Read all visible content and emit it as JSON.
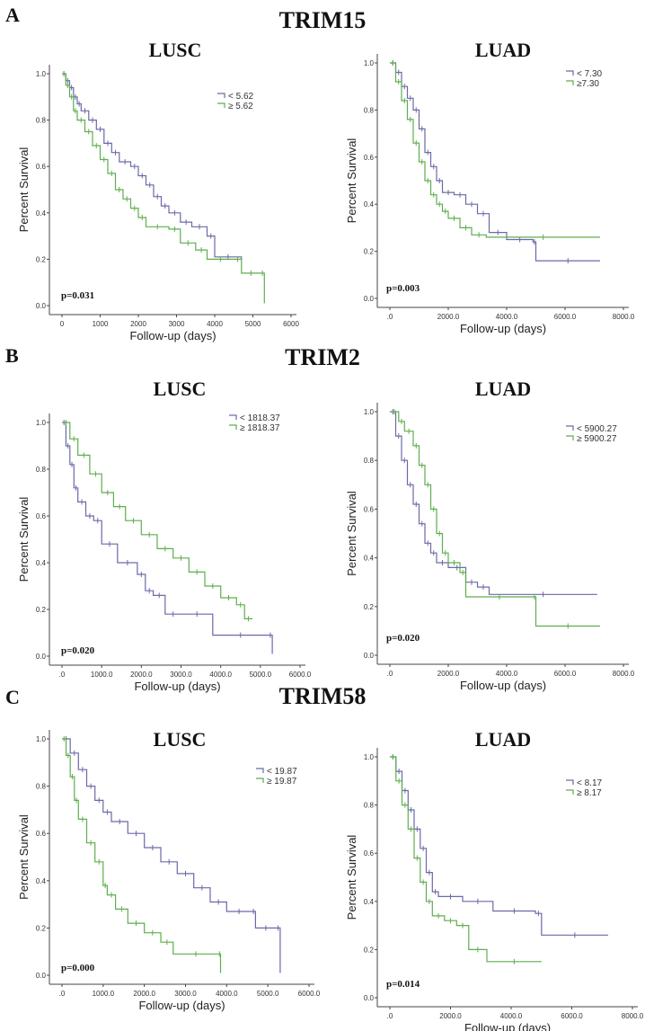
{
  "rows": [
    {
      "letter": "A",
      "gene": "TRIM15"
    },
    {
      "letter": "B",
      "gene": "TRIM2"
    },
    {
      "letter": "C",
      "gene": "TRIM58"
    }
  ],
  "colors": {
    "high": "#6a6aa8",
    "low": "#5fae4e",
    "axis": "#444444"
  },
  "chart_data": [
    {
      "type": "line",
      "panel": "A",
      "gene": "TRIM15",
      "title": "LUSC",
      "xlabel": "Follow-up (days)",
      "ylabel": "Percent Survival",
      "xlim": [
        0,
        6000
      ],
      "ylim": [
        0,
        1
      ],
      "xticks": [
        0,
        1000,
        2000,
        3000,
        4000,
        5000,
        6000
      ],
      "xticklabels": [
        "0",
        "1000",
        "2000",
        "3000",
        "4000",
        "5000",
        "6000"
      ],
      "yticks": [
        0,
        0.2,
        0.4,
        0.6,
        0.8,
        1.0
      ],
      "yticklabels": [
        "0.0",
        "0.2",
        "0.4",
        "0.6",
        "0.8",
        "1.0"
      ],
      "pvalue": "p=0.031",
      "series": [
        {
          "name": "< 5.62",
          "color_key": "high",
          "points": [
            [
              0,
              1
            ],
            [
              100,
              0.97
            ],
            [
              200,
              0.94
            ],
            [
              300,
              0.9
            ],
            [
              400,
              0.87
            ],
            [
              500,
              0.84
            ],
            [
              700,
              0.8
            ],
            [
              900,
              0.76
            ],
            [
              1100,
              0.7
            ],
            [
              1300,
              0.66
            ],
            [
              1500,
              0.62
            ],
            [
              1800,
              0.6
            ],
            [
              2000,
              0.56
            ],
            [
              2200,
              0.52
            ],
            [
              2400,
              0.47
            ],
            [
              2600,
              0.43
            ],
            [
              2800,
              0.4
            ],
            [
              3100,
              0.36
            ],
            [
              3400,
              0.34
            ],
            [
              3800,
              0.3
            ],
            [
              4000,
              0.21
            ],
            [
              4700,
              0.2
            ]
          ]
        },
        {
          "name": "≥ 5.62",
          "color_key": "low",
          "points": [
            [
              0,
              1
            ],
            [
              100,
              0.95
            ],
            [
              200,
              0.9
            ],
            [
              300,
              0.84
            ],
            [
              400,
              0.8
            ],
            [
              600,
              0.75
            ],
            [
              800,
              0.69
            ],
            [
              1000,
              0.63
            ],
            [
              1200,
              0.57
            ],
            [
              1400,
              0.5
            ],
            [
              1600,
              0.46
            ],
            [
              1800,
              0.42
            ],
            [
              2000,
              0.38
            ],
            [
              2200,
              0.34
            ],
            [
              2800,
              0.33
            ],
            [
              3100,
              0.27
            ],
            [
              3500,
              0.24
            ],
            [
              3800,
              0.2
            ],
            [
              4500,
              0.2
            ],
            [
              4700,
              0.14
            ],
            [
              5200,
              0.14
            ],
            [
              5300,
              0.01
            ]
          ]
        }
      ]
    },
    {
      "type": "line",
      "panel": "A",
      "gene": "TRIM15",
      "title": "LUAD",
      "xlabel": "Follow-up (days)",
      "ylabel": "Percent Survival",
      "xlim": [
        0,
        8000
      ],
      "ylim": [
        0,
        1
      ],
      "xticks": [
        0,
        2000,
        4000,
        6000,
        8000
      ],
      "xticklabels": [
        ".0",
        "2000.0",
        "4000.0",
        "6000.0",
        "8000.0"
      ],
      "yticks": [
        0,
        0.2,
        0.4,
        0.6,
        0.8,
        1.0
      ],
      "yticklabels": [
        "0.0",
        "0.2",
        "0.4",
        "0.6",
        "0.8",
        "1.0"
      ],
      "pvalue": "p=0.003",
      "series": [
        {
          "name": "< 7.30",
          "color_key": "high",
          "points": [
            [
              0,
              1
            ],
            [
              200,
              0.96
            ],
            [
              400,
              0.9
            ],
            [
              600,
              0.85
            ],
            [
              800,
              0.8
            ],
            [
              1000,
              0.72
            ],
            [
              1200,
              0.62
            ],
            [
              1400,
              0.56
            ],
            [
              1600,
              0.5
            ],
            [
              1800,
              0.45
            ],
            [
              2200,
              0.44
            ],
            [
              2600,
              0.4
            ],
            [
              3000,
              0.36
            ],
            [
              3400,
              0.28
            ],
            [
              4000,
              0.25
            ],
            [
              4900,
              0.24
            ],
            [
              5000,
              0.16
            ],
            [
              7200,
              0.16
            ]
          ]
        },
        {
          "name": "≥7.30",
          "color_key": "low",
          "points": [
            [
              0,
              1
            ],
            [
              200,
              0.92
            ],
            [
              400,
              0.84
            ],
            [
              600,
              0.76
            ],
            [
              800,
              0.66
            ],
            [
              1000,
              0.58
            ],
            [
              1200,
              0.5
            ],
            [
              1400,
              0.44
            ],
            [
              1600,
              0.4
            ],
            [
              1800,
              0.37
            ],
            [
              2000,
              0.34
            ],
            [
              2400,
              0.3
            ],
            [
              2800,
              0.27
            ],
            [
              3300,
              0.26
            ],
            [
              7200,
              0.26
            ]
          ]
        }
      ]
    },
    {
      "type": "line",
      "panel": "B",
      "gene": "TRIM2",
      "title": "LUSC",
      "xlabel": "Follow-up (days)",
      "ylabel": "Percent Survival",
      "xlim": [
        0,
        6000
      ],
      "ylim": [
        0,
        1
      ],
      "xticks": [
        0,
        1000,
        2000,
        3000,
        4000,
        5000,
        6000
      ],
      "xticklabels": [
        ".0",
        "1000.0",
        "2000.0",
        "3000.0",
        "4000.0",
        "5000.0",
        "6000.0"
      ],
      "yticks": [
        0,
        0.2,
        0.4,
        0.6,
        0.8,
        1.0
      ],
      "yticklabels": [
        "0.0",
        "0.2",
        "0.4",
        "0.6",
        "0.8",
        "1.0"
      ],
      "pvalue": "p=0.020",
      "series": [
        {
          "name": "< 1818.37",
          "color_key": "high",
          "points": [
            [
              0,
              1
            ],
            [
              100,
              0.9
            ],
            [
              200,
              0.82
            ],
            [
              300,
              0.72
            ],
            [
              400,
              0.66
            ],
            [
              600,
              0.6
            ],
            [
              800,
              0.58
            ],
            [
              1000,
              0.48
            ],
            [
              1400,
              0.4
            ],
            [
              1900,
              0.35
            ],
            [
              2100,
              0.28
            ],
            [
              2300,
              0.26
            ],
            [
              2600,
              0.18
            ],
            [
              3000,
              0.18
            ],
            [
              3800,
              0.09
            ],
            [
              5200,
              0.09
            ],
            [
              5300,
              0.01
            ]
          ]
        },
        {
          "name": "≥ 1818.37",
          "color_key": "low",
          "points": [
            [
              0,
              1
            ],
            [
              200,
              0.93
            ],
            [
              400,
              0.86
            ],
            [
              700,
              0.78
            ],
            [
              1000,
              0.7
            ],
            [
              1300,
              0.64
            ],
            [
              1600,
              0.58
            ],
            [
              2000,
              0.52
            ],
            [
              2400,
              0.46
            ],
            [
              2800,
              0.42
            ],
            [
              3200,
              0.36
            ],
            [
              3600,
              0.3
            ],
            [
              4000,
              0.25
            ],
            [
              4400,
              0.22
            ],
            [
              4600,
              0.16
            ],
            [
              4800,
              0.16
            ]
          ]
        }
      ]
    },
    {
      "type": "line",
      "panel": "B",
      "gene": "TRIM2",
      "title": "LUAD",
      "xlabel": "Follow-up (days)",
      "ylabel": "Percent Survival",
      "xlim": [
        0,
        8000
      ],
      "ylim": [
        0,
        1
      ],
      "xticks": [
        0,
        2000,
        4000,
        6000,
        8000
      ],
      "xticklabels": [
        ".0",
        "2000.0",
        "4000.0",
        "6000.0",
        "8000.0"
      ],
      "yticks": [
        0,
        0.2,
        0.4,
        0.6,
        0.8,
        1.0
      ],
      "yticklabels": [
        "0.0",
        "0.2",
        "0.4",
        "0.6",
        "0.8",
        "1.0"
      ],
      "pvalue": "p=0.020",
      "series": [
        {
          "name": "< 5900.27",
          "color_key": "high",
          "points": [
            [
              0,
              1
            ],
            [
              200,
              0.9
            ],
            [
              400,
              0.8
            ],
            [
              600,
              0.7
            ],
            [
              800,
              0.62
            ],
            [
              1000,
              0.54
            ],
            [
              1200,
              0.46
            ],
            [
              1400,
              0.42
            ],
            [
              1600,
              0.38
            ],
            [
              2000,
              0.36
            ],
            [
              2600,
              0.3
            ],
            [
              3000,
              0.28
            ],
            [
              3400,
              0.25
            ],
            [
              7100,
              0.25
            ]
          ]
        },
        {
          "name": "≥ 5900.27",
          "color_key": "low",
          "points": [
            [
              0,
              1
            ],
            [
              300,
              0.96
            ],
            [
              500,
              0.92
            ],
            [
              800,
              0.86
            ],
            [
              1000,
              0.78
            ],
            [
              1200,
              0.7
            ],
            [
              1400,
              0.6
            ],
            [
              1600,
              0.5
            ],
            [
              1800,
              0.42
            ],
            [
              2000,
              0.38
            ],
            [
              2400,
              0.34
            ],
            [
              2600,
              0.24
            ],
            [
              4900,
              0.24
            ],
            [
              5000,
              0.12
            ],
            [
              7200,
              0.12
            ]
          ]
        }
      ]
    },
    {
      "type": "line",
      "panel": "C",
      "gene": "TRIM58",
      "title": "LUSC",
      "xlabel": "Follow-up (days)",
      "ylabel": "Percent Survival",
      "xlim": [
        0,
        6000
      ],
      "ylim": [
        0,
        1
      ],
      "xticks": [
        0,
        1000,
        2000,
        3000,
        4000,
        5000,
        6000
      ],
      "xticklabels": [
        ".0",
        "1000.0",
        "2000.0",
        "3000.0",
        "4000.0",
        "5000.0",
        "6000.0"
      ],
      "yticks": [
        0,
        0.2,
        0.4,
        0.6,
        0.8,
        1.0
      ],
      "yticklabels": [
        "0.0",
        "0.2",
        "0.4",
        "0.6",
        "0.8",
        "1.0"
      ],
      "pvalue": "p=0.000",
      "series": [
        {
          "name": "< 19.87",
          "color_key": "high",
          "points": [
            [
              0,
              1
            ],
            [
              200,
              0.94
            ],
            [
              400,
              0.87
            ],
            [
              600,
              0.8
            ],
            [
              800,
              0.74
            ],
            [
              1000,
              0.69
            ],
            [
              1200,
              0.65
            ],
            [
              1600,
              0.6
            ],
            [
              2000,
              0.54
            ],
            [
              2400,
              0.48
            ],
            [
              2800,
              0.43
            ],
            [
              3200,
              0.37
            ],
            [
              3600,
              0.31
            ],
            [
              4000,
              0.27
            ],
            [
              4600,
              0.27
            ],
            [
              4700,
              0.2
            ],
            [
              5200,
              0.2
            ],
            [
              5300,
              0.01
            ]
          ]
        },
        {
          "name": "≥ 19.87",
          "color_key": "low",
          "points": [
            [
              0,
              1
            ],
            [
              100,
              0.93
            ],
            [
              200,
              0.84
            ],
            [
              300,
              0.74
            ],
            [
              400,
              0.66
            ],
            [
              600,
              0.56
            ],
            [
              800,
              0.48
            ],
            [
              1000,
              0.38
            ],
            [
              1100,
              0.34
            ],
            [
              1300,
              0.28
            ],
            [
              1600,
              0.22
            ],
            [
              2000,
              0.18
            ],
            [
              2400,
              0.14
            ],
            [
              2700,
              0.09
            ],
            [
              3800,
              0.09
            ],
            [
              3850,
              0.01
            ]
          ]
        }
      ]
    },
    {
      "type": "line",
      "panel": "C",
      "gene": "TRIM58",
      "title": "LUAD",
      "xlabel": "Follow-up (days)",
      "ylabel": "Percent Survival",
      "xlim": [
        0,
        8000
      ],
      "ylim": [
        0,
        1
      ],
      "xticks": [
        0,
        2000,
        4000,
        6000,
        8000
      ],
      "xticklabels": [
        ".0",
        "2000.0",
        "4000.0",
        "6000.0",
        "8000.0"
      ],
      "yticks": [
        0,
        0.2,
        0.4,
        0.6,
        0.8,
        1.0
      ],
      "yticklabels": [
        "0.0",
        "0.2",
        "0.4",
        "0.6",
        "0.8",
        "1.0"
      ],
      "pvalue": "p=0.014",
      "series": [
        {
          "name": "< 8.17",
          "color_key": "high",
          "points": [
            [
              0,
              1
            ],
            [
              200,
              0.94
            ],
            [
              400,
              0.86
            ],
            [
              600,
              0.78
            ],
            [
              800,
              0.7
            ],
            [
              1000,
              0.62
            ],
            [
              1200,
              0.52
            ],
            [
              1400,
              0.44
            ],
            [
              1600,
              0.42
            ],
            [
              2400,
              0.4
            ],
            [
              3400,
              0.36
            ],
            [
              4800,
              0.35
            ],
            [
              5000,
              0.26
            ],
            [
              7200,
              0.26
            ]
          ]
        },
        {
          "name": "≥ 8.17",
          "color_key": "low",
          "points": [
            [
              0,
              1
            ],
            [
              200,
              0.9
            ],
            [
              400,
              0.8
            ],
            [
              600,
              0.7
            ],
            [
              800,
              0.58
            ],
            [
              1000,
              0.48
            ],
            [
              1200,
              0.4
            ],
            [
              1400,
              0.34
            ],
            [
              1800,
              0.32
            ],
            [
              2200,
              0.3
            ],
            [
              2600,
              0.2
            ],
            [
              3200,
              0.15
            ],
            [
              5000,
              0.15
            ]
          ]
        }
      ]
    }
  ]
}
